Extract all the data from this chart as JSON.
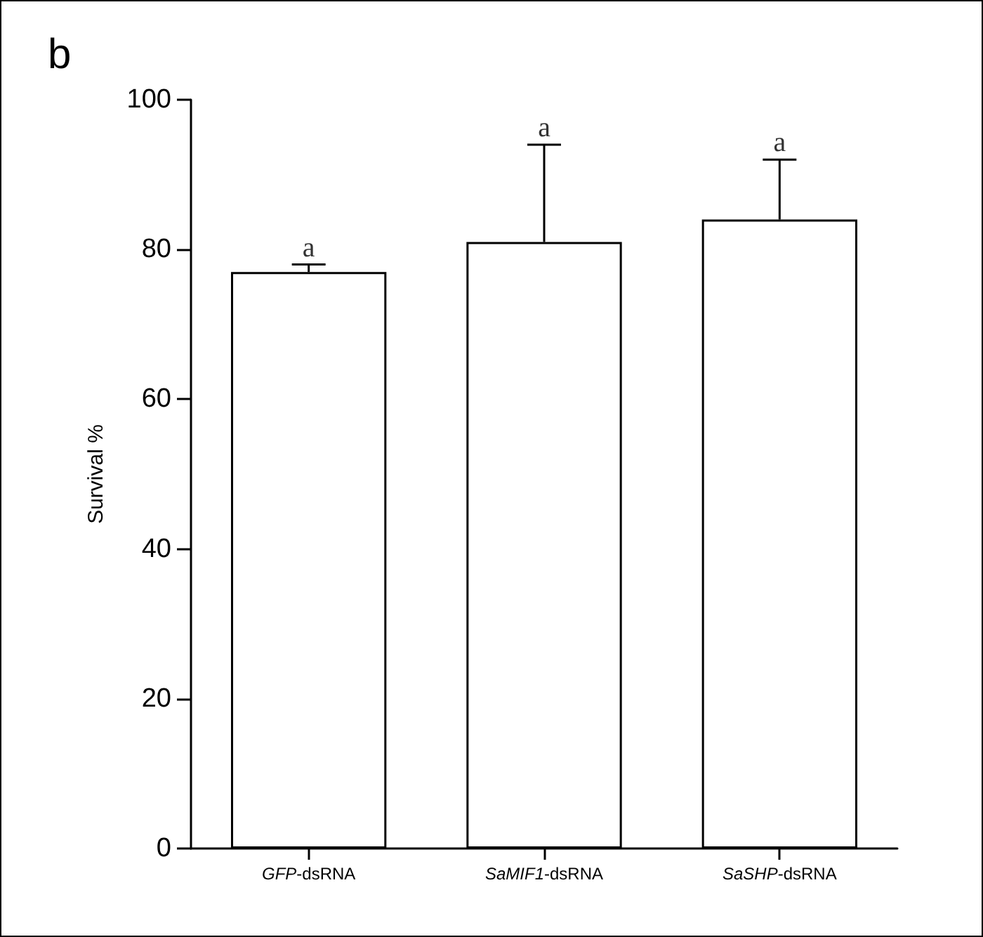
{
  "chart_data": {
    "type": "bar",
    "title": "b",
    "ylabel": "Survival %",
    "categories": [
      "GFP-dsRNA",
      "SaMIF1-dsRNA",
      "SaSHP-dsRNA"
    ],
    "values": [
      77,
      81,
      84
    ],
    "color": "#ffffff",
    "errors": [
      [
        77,
        78
      ],
      [
        81,
        94
      ],
      [
        84,
        92
      ]
    ],
    "ylim": [
      0,
      100
    ],
    "yticks": [
      0,
      20,
      40,
      60,
      80,
      100
    ],
    "grid": false,
    "annotations": [
      {
        "text": "a",
        "x": "GFP-dsRNA",
        "y": 78
      },
      {
        "text": "a",
        "x": "SaMIF1-dsRNA",
        "y": 94
      },
      {
        "text": "a",
        "x": "SaSHP-dsRNA",
        "y": 92
      }
    ]
  }
}
